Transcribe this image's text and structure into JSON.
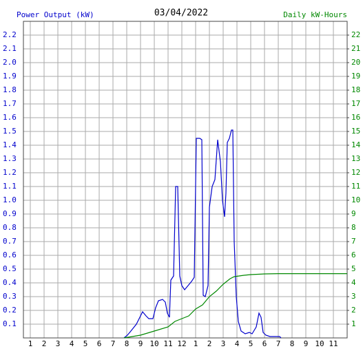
{
  "chart_data": {
    "type": "line",
    "title": "03/04/2022",
    "ylabel": "Power Output (kW)",
    "y2label": "Daily kW-Hours",
    "ylabel_color": "#0000cc",
    "y2label_color": "#008800",
    "grid": true,
    "xlim": [
      0.5,
      24
    ],
    "xticks": [
      {
        "value": 1,
        "label": "1"
      },
      {
        "value": 2,
        "label": "2"
      },
      {
        "value": 3,
        "label": "3"
      },
      {
        "value": 4,
        "label": "4"
      },
      {
        "value": 5,
        "label": "5"
      },
      {
        "value": 6,
        "label": "6"
      },
      {
        "value": 7,
        "label": "7"
      },
      {
        "value": 8,
        "label": "8"
      },
      {
        "value": 9,
        "label": "9"
      },
      {
        "value": 10,
        "label": "10"
      },
      {
        "value": 11,
        "label": "11"
      },
      {
        "value": 12,
        "label": "12"
      },
      {
        "value": 13,
        "label": "1"
      },
      {
        "value": 14,
        "label": "2"
      },
      {
        "value": 15,
        "label": "3"
      },
      {
        "value": 16,
        "label": "4"
      },
      {
        "value": 17,
        "label": "5"
      },
      {
        "value": 18,
        "label": "6"
      },
      {
        "value": 19,
        "label": "7"
      },
      {
        "value": 20,
        "label": "8"
      },
      {
        "value": 21,
        "label": "9"
      },
      {
        "value": 22,
        "label": "10"
      },
      {
        "value": 23,
        "label": "11"
      }
    ],
    "ylim": [
      0,
      2.3
    ],
    "yticks": [
      0.1,
      0.2,
      0.3,
      0.4,
      0.5,
      0.6,
      0.7,
      0.8,
      0.9,
      {
        "value": 1,
        "label": "1.0"
      },
      1.1,
      1.2,
      1.3,
      1.4,
      1.5,
      1.6,
      1.7,
      1.8,
      1.9,
      {
        "value": 2,
        "label": "2.0"
      },
      2.1,
      2.2
    ],
    "y2lim": [
      0,
      23
    ],
    "y2ticks": [
      1,
      2,
      3,
      4,
      5,
      6,
      7,
      8,
      9,
      10,
      11,
      12,
      13,
      14,
      15,
      16,
      17,
      18,
      19,
      20,
      21,
      22
    ],
    "series": [
      {
        "color": "#0000cc",
        "axis": "y",
        "x": [
          7.8,
          8.05,
          8.3,
          8.7,
          8.95,
          9.15,
          9.4,
          9.6,
          9.9,
          10.1,
          10.3,
          10.6,
          10.8,
          10.95,
          11.1,
          11.2,
          11.4,
          11.55,
          11.7,
          11.85,
          12.0,
          12.2,
          12.45,
          12.7,
          12.9,
          13.05,
          13.3,
          13.45,
          13.55,
          13.7,
          13.9,
          14.0,
          14.2,
          14.4,
          14.6,
          14.8,
          14.95,
          15.1,
          15.2,
          15.3,
          15.45,
          15.6,
          15.7,
          15.8,
          15.95,
          16.1,
          16.3,
          16.6,
          16.9,
          17.1,
          17.4,
          17.6,
          17.75,
          17.9,
          18.1,
          18.4,
          18.9,
          19.1,
          19.2
        ],
        "values": [
          0,
          0.02,
          0.05,
          0.1,
          0.15,
          0.19,
          0.16,
          0.14,
          0.14,
          0.22,
          0.27,
          0.28,
          0.26,
          0.18,
          0.15,
          0.42,
          0.45,
          1.1,
          1.1,
          0.45,
          0.38,
          0.35,
          0.38,
          0.41,
          0.44,
          1.45,
          1.45,
          1.44,
          0.31,
          0.3,
          0.38,
          0.95,
          1.1,
          1.15,
          1.44,
          1.28,
          1.0,
          0.88,
          1.05,
          1.42,
          1.45,
          1.51,
          1.51,
          0.7,
          0.3,
          0.12,
          0.05,
          0.03,
          0.04,
          0.03,
          0.08,
          0.18,
          0.15,
          0.04,
          0.02,
          0.01,
          0.01,
          0.01,
          0
        ]
      },
      {
        "color": "#008800",
        "axis": "y2",
        "x": [
          7.8,
          9,
          10,
          11,
          11.5,
          12,
          12.5,
          13,
          13.5,
          14,
          14.5,
          15,
          15.5,
          15.8,
          16.5,
          17,
          18,
          19,
          20,
          24
        ],
        "values": [
          0,
          0.2,
          0.5,
          0.8,
          1.2,
          1.4,
          1.6,
          2.1,
          2.4,
          3.0,
          3.4,
          3.9,
          4.3,
          4.45,
          4.55,
          4.6,
          4.65,
          4.67,
          4.67,
          4.67
        ]
      }
    ]
  }
}
